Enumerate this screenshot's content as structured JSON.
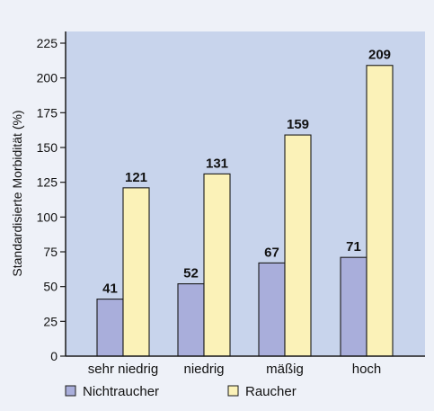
{
  "chart_data": {
    "type": "bar",
    "categories": [
      "sehr niedrig",
      "niedrig",
      "mäßig",
      "hoch"
    ],
    "series": [
      {
        "name": "Nichtraucher",
        "values": [
          41,
          52,
          67,
          71
        ]
      },
      {
        "name": "Raucher",
        "values": [
          121,
          131,
          159,
          209
        ]
      }
    ],
    "ylabel": "Standardisierte Morbidität (%)",
    "xlabel": "",
    "ylim": [
      0,
      225
    ],
    "yticks": [
      0,
      25,
      50,
      75,
      100,
      125,
      150,
      175,
      200,
      225
    ],
    "grid": false,
    "legend_position": "bottom",
    "colors": {
      "page_background": "#eef1f8",
      "plot_background": "#c8d4ec",
      "Nichtraucher": "#a9aedb",
      "Raucher": "#fbf2b8",
      "bar_stroke": "#1a1a1a",
      "axis": "#1a1a1a"
    }
  }
}
